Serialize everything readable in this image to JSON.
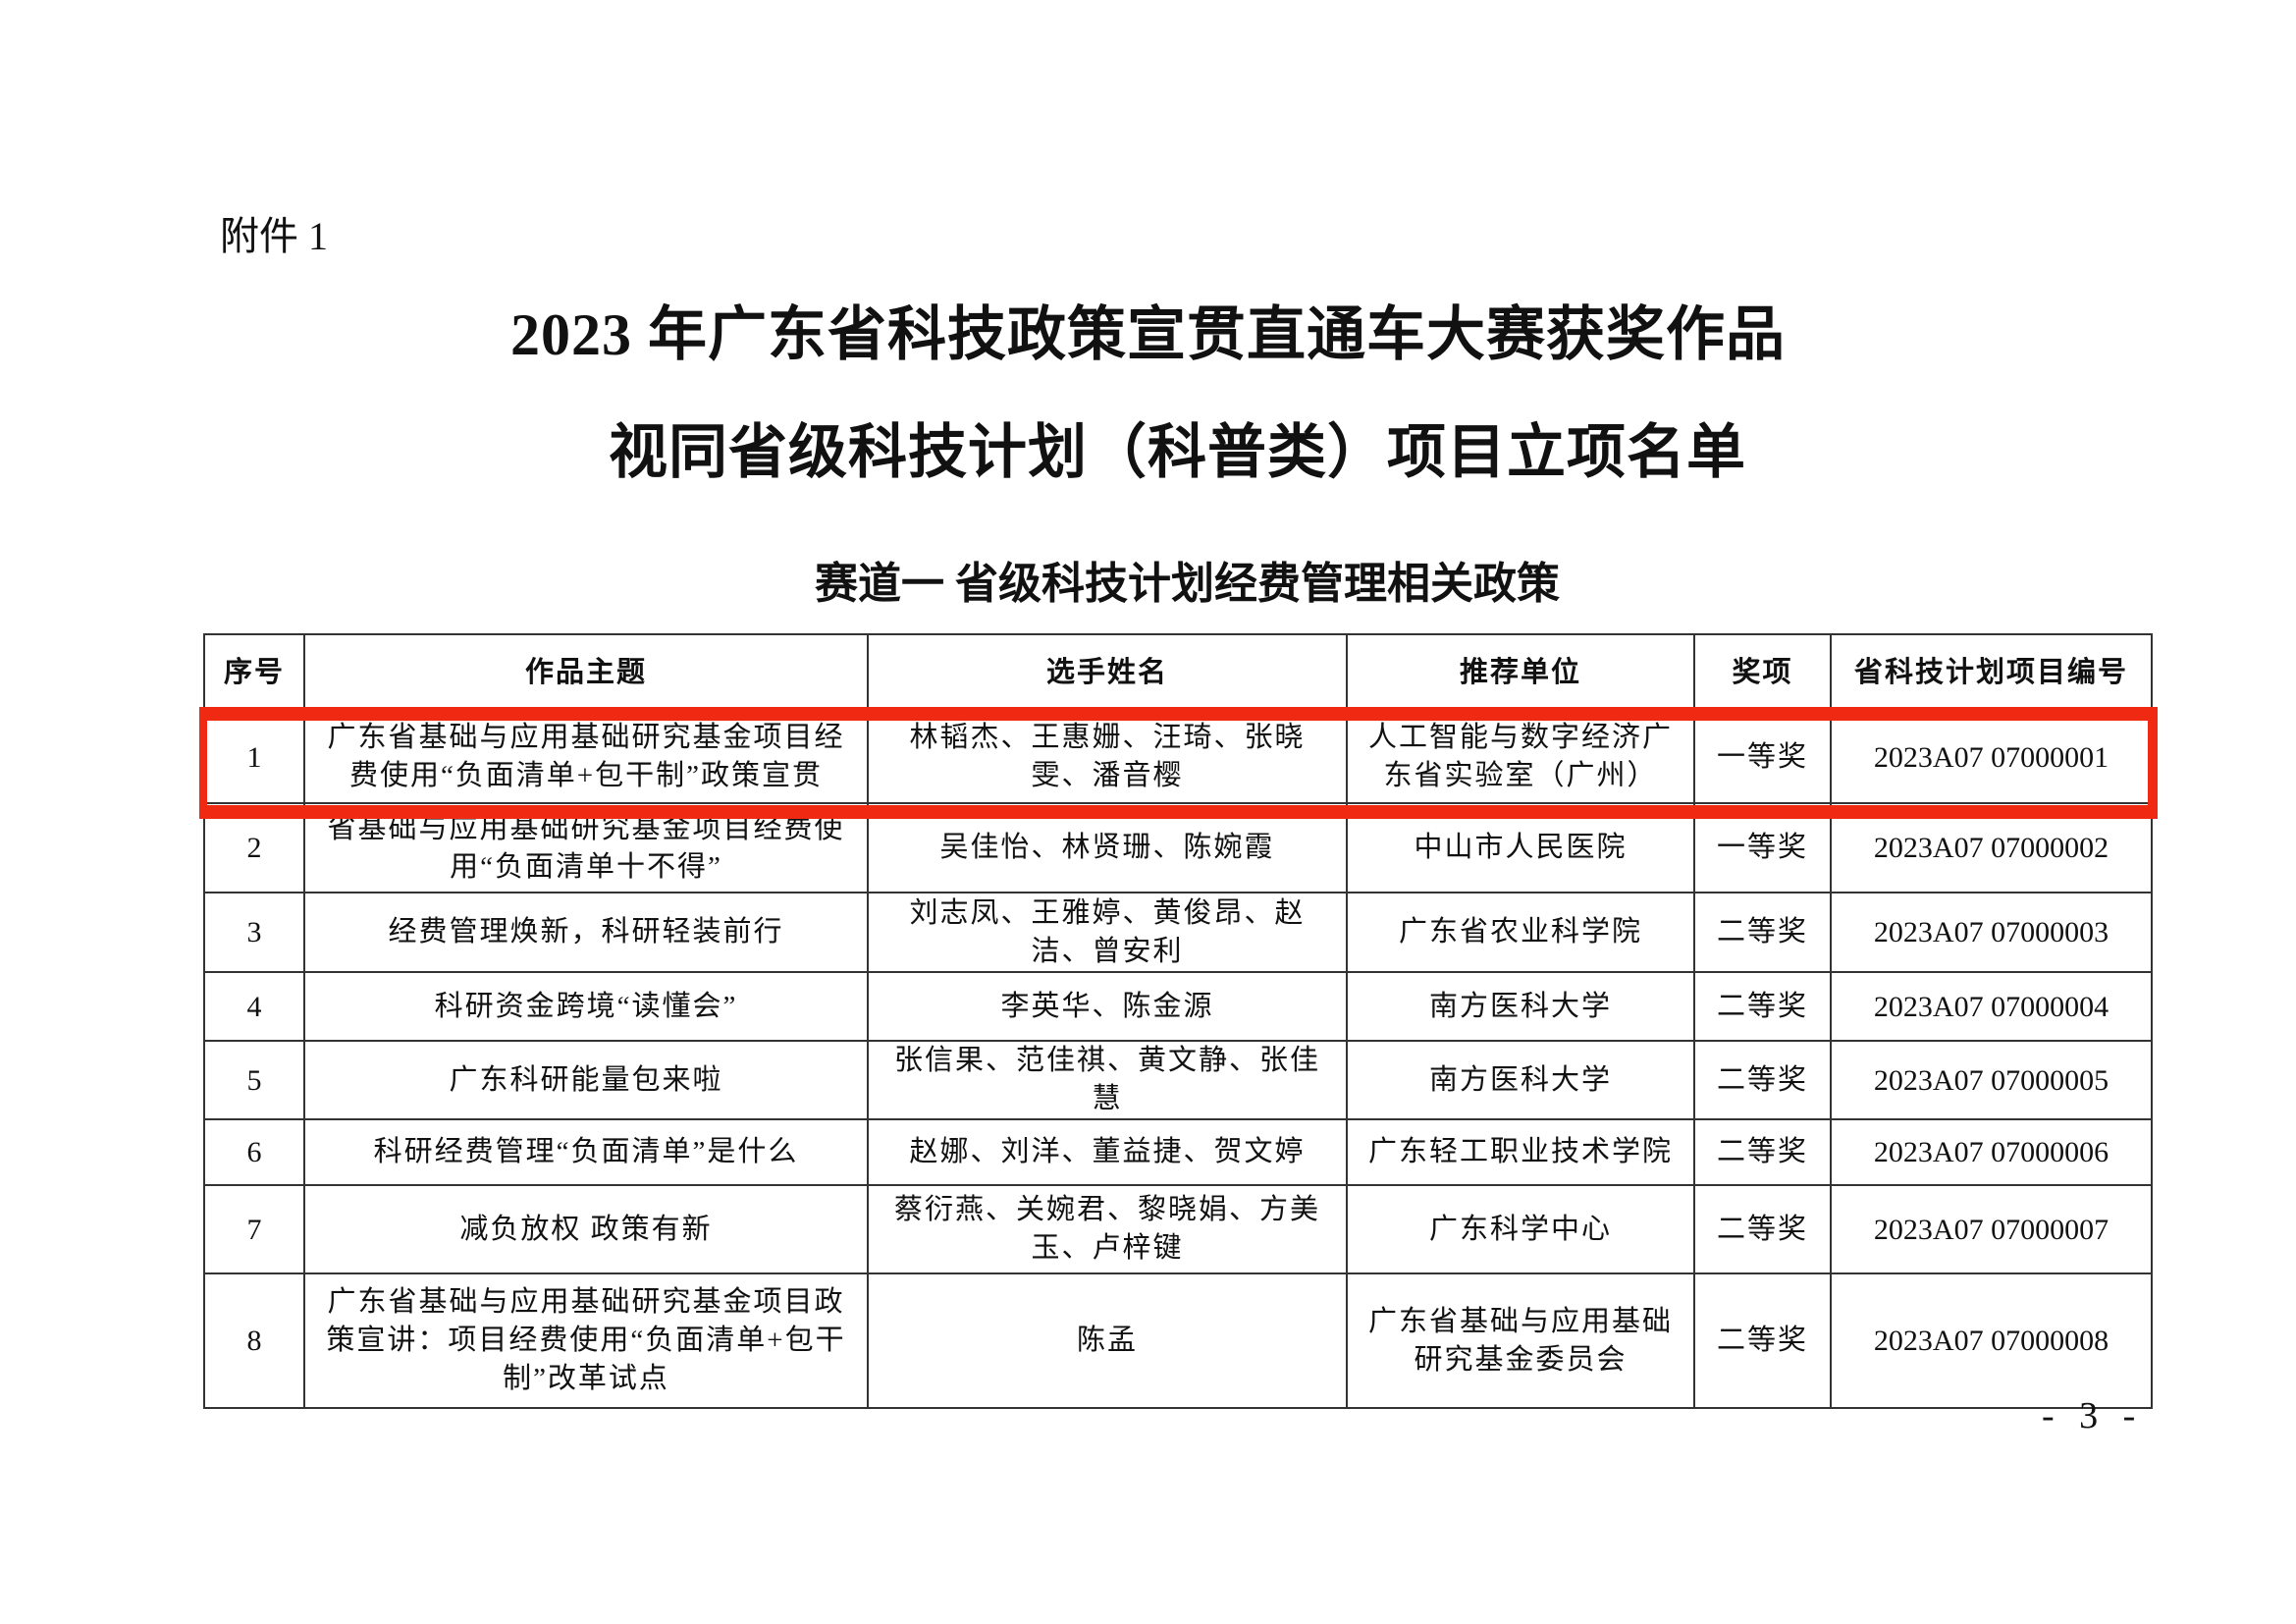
{
  "attachment_label": "附件 1",
  "title_line1": "2023 年广东省科技政策宣贯直通车大赛获奖作品",
  "title_line2": "视同省级科技计划（科普类）项目立项名单",
  "subtitle": "赛道一  省级科技计划经费管理相关政策",
  "table": {
    "headers": [
      "序号",
      "作品主题",
      "选手姓名",
      "推荐单位",
      "奖项",
      "省科技计划项目编号"
    ],
    "rows": [
      {
        "no": "1",
        "topic": "广东省基础与应用基础研究基金项目经费使用“负面清单+包干制”政策宣贯",
        "players": "林韬杰、王惠姗、汪琦、张晓雯、潘音樱",
        "unit": "人工智能与数字经济广东省实验室（广州）",
        "award": "一等奖",
        "code": "2023A07 07000001"
      },
      {
        "no": "2",
        "topic": "省基础与应用基础研究基金项目经费使用“负面清单十不得”",
        "players": "吴佳怡、林贤珊、陈婉霞",
        "unit": "中山市人民医院",
        "award": "一等奖",
        "code": "2023A07 07000002"
      },
      {
        "no": "3",
        "topic": "经费管理焕新，科研轻装前行",
        "players": "刘志凤、王雅婷、黄俊昂、赵洁、曾安利",
        "unit": "广东省农业科学院",
        "award": "二等奖",
        "code": "2023A07 07000003"
      },
      {
        "no": "4",
        "topic": "科研资金跨境“读懂会”",
        "players": "李英华、陈金源",
        "unit": "南方医科大学",
        "award": "二等奖",
        "code": "2023A07 07000004"
      },
      {
        "no": "5",
        "topic": "广东科研能量包来啦",
        "players": "张信果、范佳祺、黄文静、张佳慧",
        "unit": "南方医科大学",
        "award": "二等奖",
        "code": "2023A07 07000005"
      },
      {
        "no": "6",
        "topic": "科研经费管理“负面清单”是什么",
        "players": "赵娜、刘洋、董益捷、贺文婷",
        "unit": "广东轻工职业技术学院",
        "award": "二等奖",
        "code": "2023A07 07000006"
      },
      {
        "no": "7",
        "topic": "减负放权 政策有新",
        "players": "蔡衍燕、关婉君、黎晓娟、方美玉、卢梓键",
        "unit": "广东科学中心",
        "award": "二等奖",
        "code": "2023A07 07000007"
      },
      {
        "no": "8",
        "topic": "广东省基础与应用基础研究基金项目政策宣讲：项目经费使用“负面清单+包干制”改革试点",
        "players": "陈孟",
        "unit": "广东省基础与应用基础研究基金委员会",
        "award": "二等奖",
        "code": "2023A07 07000008"
      }
    ]
  },
  "highlight": {
    "row": "1",
    "color": "#f02a12"
  },
  "page_number": "- 3 -"
}
